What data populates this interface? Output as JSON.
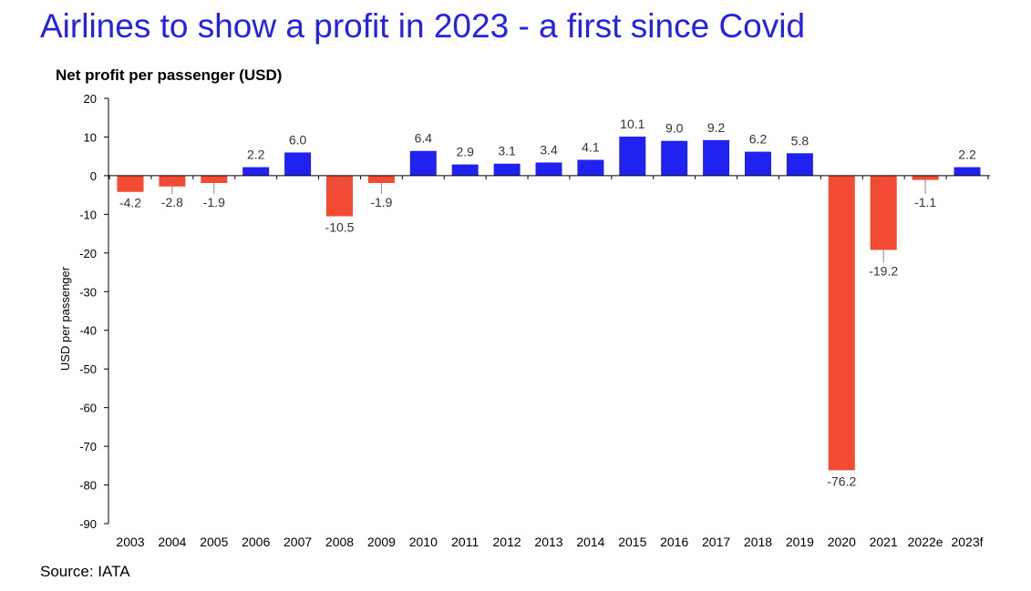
{
  "header": {
    "title": "Airlines to show a profit in 2023 - a first since Covid",
    "subtitle": "Net profit per passenger (USD)"
  },
  "footer": {
    "source": "Source: IATA"
  },
  "colors": {
    "positive": "#1f22f0",
    "negative": "#f24a33",
    "title": "#2323e6"
  },
  "chart_data": {
    "type": "bar",
    "title": "Net profit per passenger (USD)",
    "xlabel": "",
    "ylabel": "USD per passenger",
    "ylim": [
      -90,
      20
    ],
    "yticks": [
      20,
      10,
      0,
      -10,
      -20,
      -30,
      -40,
      -50,
      -60,
      -70,
      -80,
      -90
    ],
    "grid": false,
    "legend": "none",
    "categories": [
      "2003",
      "2004",
      "2005",
      "2006",
      "2007",
      "2008",
      "2009",
      "2010",
      "2011",
      "2012",
      "2013",
      "2014",
      "2015",
      "2016",
      "2017",
      "2018",
      "2019",
      "2020",
      "2021",
      "2022e",
      "2023f"
    ],
    "values": [
      -4.2,
      -2.8,
      -1.9,
      2.2,
      6.0,
      -10.5,
      -1.9,
      6.4,
      2.9,
      3.1,
      3.4,
      4.1,
      10.1,
      9.0,
      9.2,
      6.2,
      5.8,
      -76.2,
      -19.2,
      -1.1,
      2.2
    ],
    "data_labels": [
      "-4.2",
      "-2.8",
      "-1.9",
      "2.2",
      "6.0",
      "-10.5",
      "-1.9",
      "6.4",
      "2.9",
      "3.1",
      "3.4",
      "4.1",
      "10.1",
      "9.0",
      "9.2",
      "6.2",
      "5.8",
      "-76.2",
      "-19.2",
      "-1.1",
      "2.2"
    ]
  }
}
